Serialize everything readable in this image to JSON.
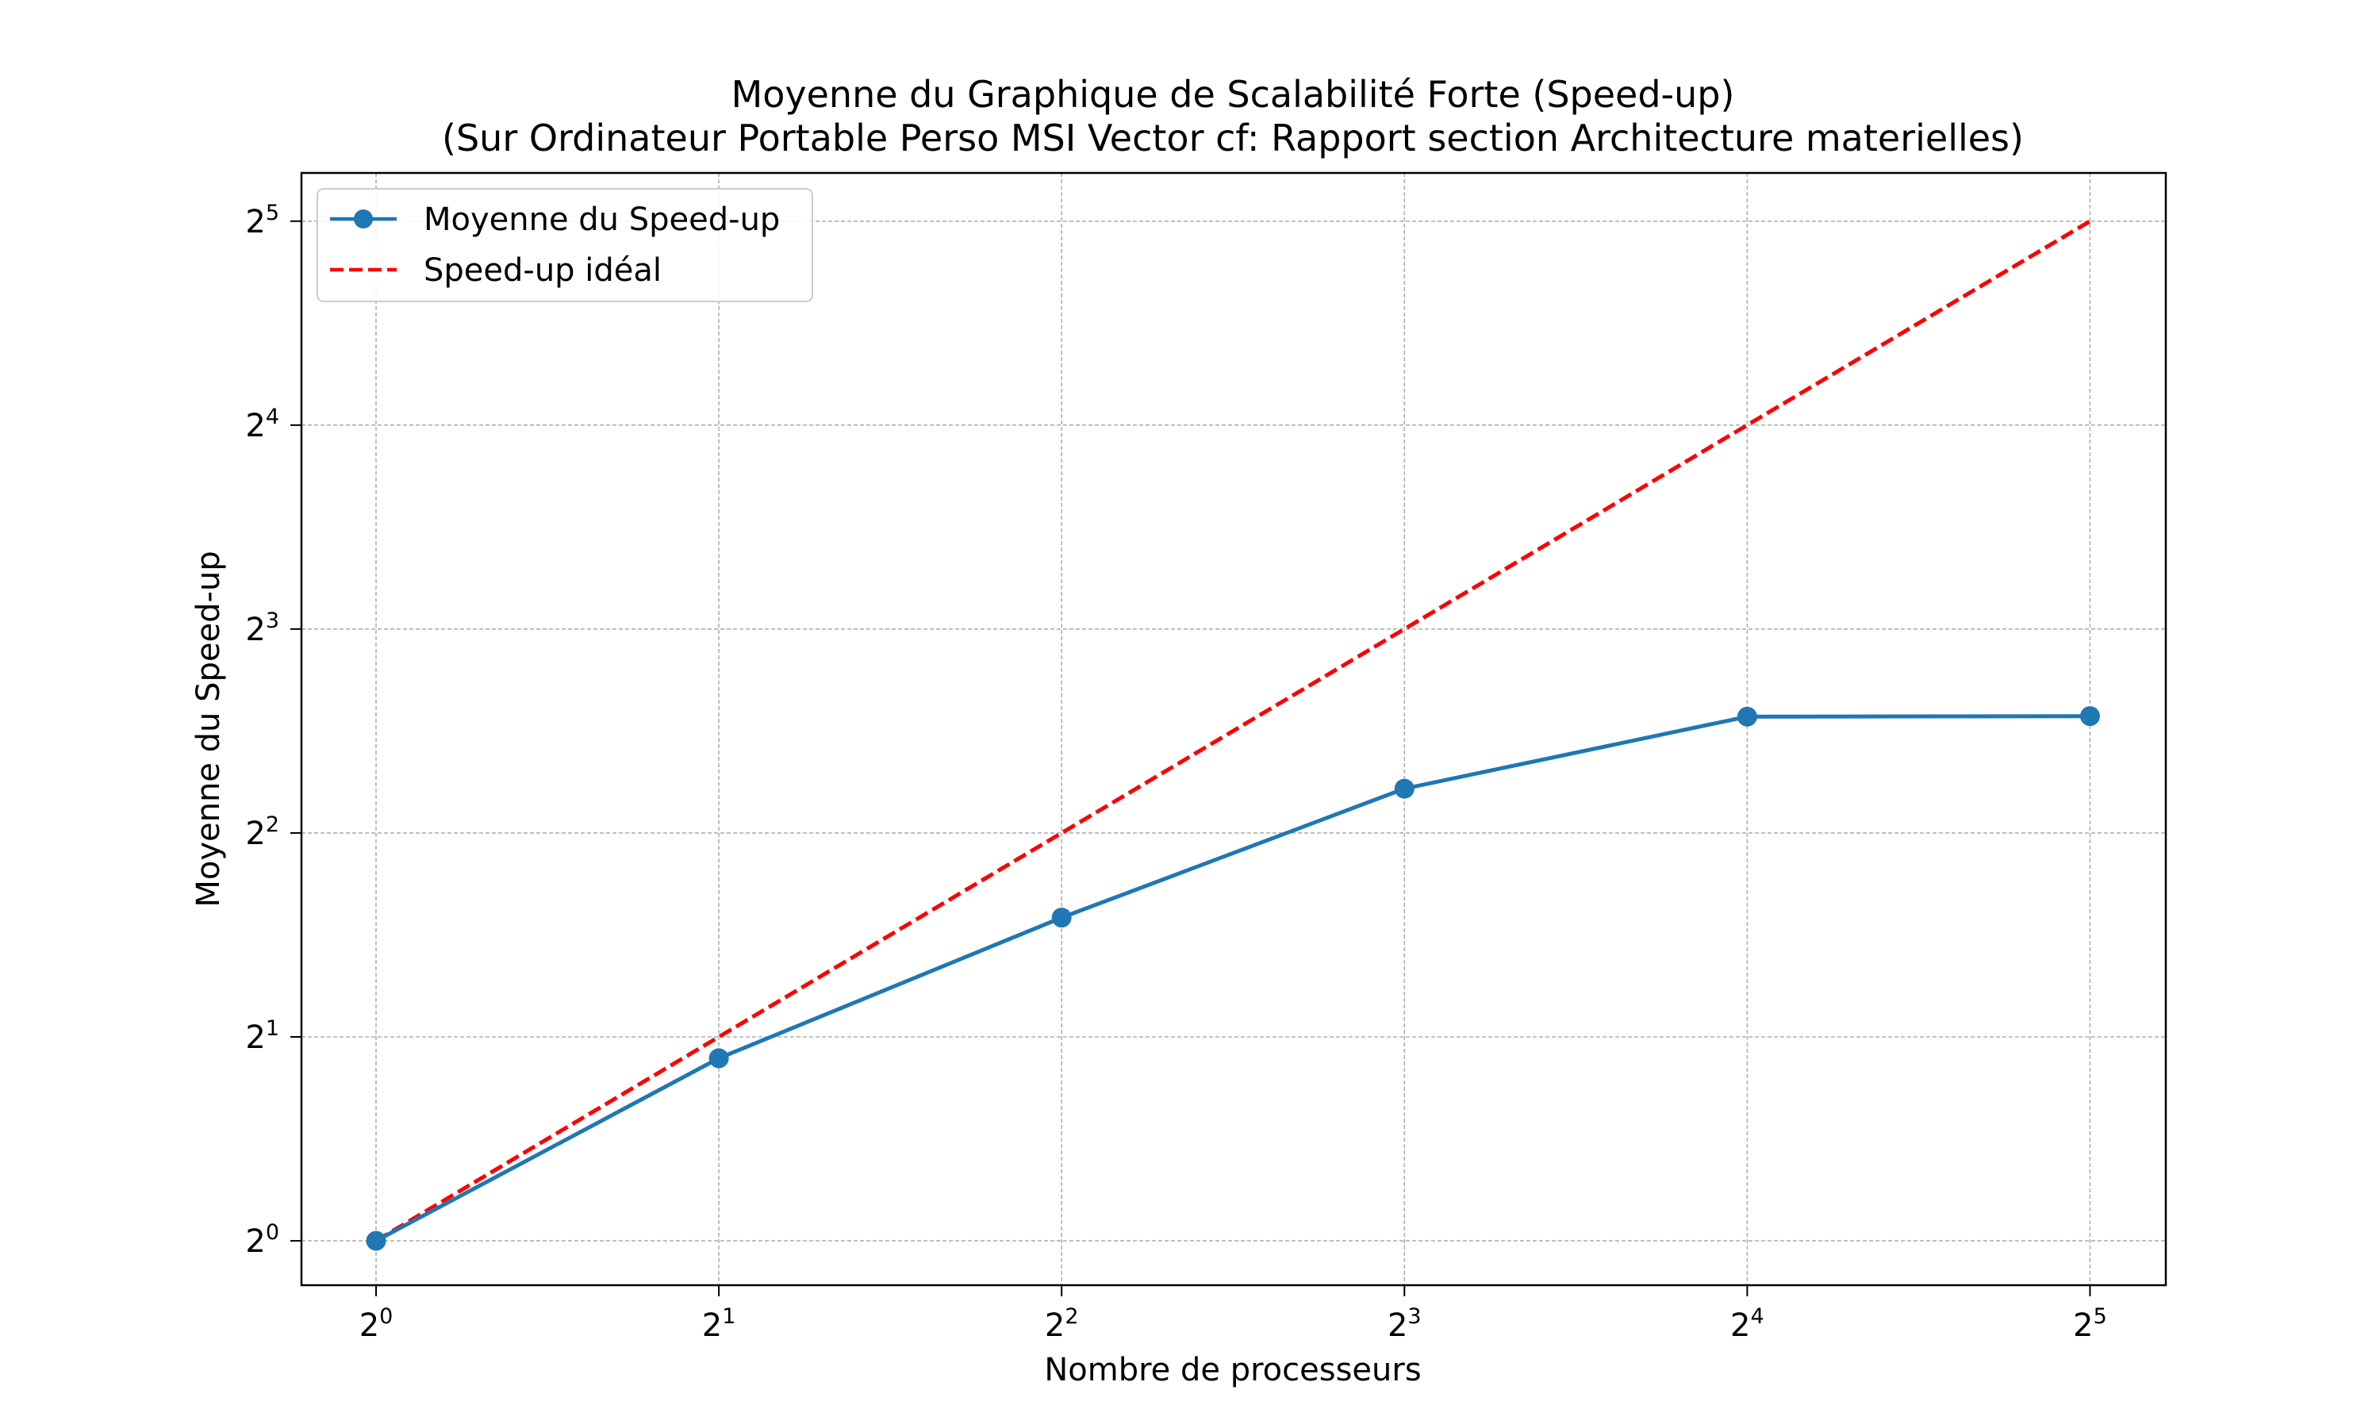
{
  "chart_data": {
    "type": "line",
    "title": "Moyenne du Graphique de Scalabilité Forte (Speed-up)",
    "subtitle": "(Sur Ordinateur Portable Perso MSI Vector cf: Rapport section Architecture materielles)",
    "xlabel": "Nombre de processeurs",
    "ylabel": "Moyenne du Speed-up",
    "x_scale": "log2",
    "y_scale": "log2",
    "x_ticks": [
      {
        "base": "2",
        "exp": "0",
        "value": 1
      },
      {
        "base": "2",
        "exp": "1",
        "value": 2
      },
      {
        "base": "2",
        "exp": "2",
        "value": 4
      },
      {
        "base": "2",
        "exp": "3",
        "value": 8
      },
      {
        "base": "2",
        "exp": "4",
        "value": 16
      },
      {
        "base": "2",
        "exp": "5",
        "value": 32
      }
    ],
    "y_ticks": [
      {
        "base": "2",
        "exp": "0",
        "value": 1
      },
      {
        "base": "2",
        "exp": "1",
        "value": 2
      },
      {
        "base": "2",
        "exp": "2",
        "value": 4
      },
      {
        "base": "2",
        "exp": "3",
        "value": 8
      },
      {
        "base": "2",
        "exp": "4",
        "value": 16
      },
      {
        "base": "2",
        "exp": "5",
        "value": 32
      }
    ],
    "xlim": [
      0.86,
      37.3
    ],
    "ylim": [
      0.86,
      37.7
    ],
    "grid": true,
    "legend_position": "top-left",
    "series": [
      {
        "name": "Moyenne du Speed-up",
        "color": "#1f77b4",
        "style": "solid",
        "marker": "circle",
        "x": [
          1,
          2,
          4,
          8,
          16,
          32
        ],
        "y": [
          1.0,
          1.86,
          3.0,
          4.65,
          5.94,
          5.95
        ]
      },
      {
        "name": "Speed-up idéal",
        "color": "#ff0000",
        "style": "dashed",
        "marker": "none",
        "x": [
          1,
          2,
          4,
          8,
          16,
          32
        ],
        "y": [
          1,
          2,
          4,
          8,
          16,
          32
        ]
      }
    ]
  }
}
